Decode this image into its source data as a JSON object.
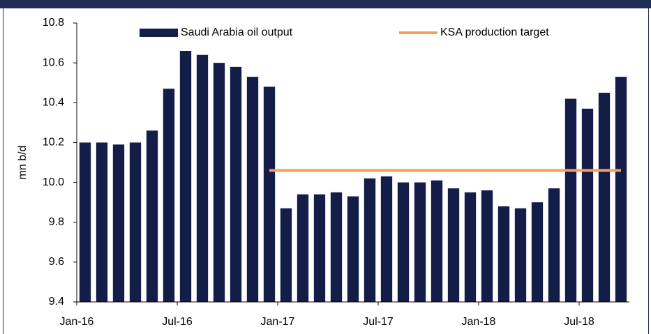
{
  "chart_data": {
    "type": "bar",
    "y_label": "mn b/d",
    "categories": [
      "Jan-16",
      null,
      null,
      null,
      null,
      null,
      "Jul-16",
      null,
      null,
      null,
      null,
      null,
      "Jan-17",
      null,
      null,
      null,
      null,
      null,
      "Jul-17",
      null,
      null,
      null,
      null,
      null,
      "Jan-18",
      null,
      null,
      null,
      null,
      null,
      "Jul-18",
      null,
      null
    ],
    "series": [
      {
        "name": "Saudi Arabia oil output",
        "type": "bar",
        "color": "#141c48",
        "values": [
          10.2,
          10.2,
          10.19,
          10.2,
          10.26,
          10.47,
          10.66,
          10.64,
          10.6,
          10.58,
          10.53,
          10.48,
          9.87,
          9.94,
          9.94,
          9.95,
          9.93,
          10.02,
          10.03,
          10.0,
          10.0,
          10.01,
          9.97,
          9.95,
          9.96,
          9.88,
          9.87,
          9.9,
          9.97,
          10.42,
          10.37,
          10.45,
          10.53
        ]
      },
      {
        "name": "KSA production target",
        "type": "line",
        "color": "#f5a05c",
        "values": [
          null,
          null,
          null,
          null,
          null,
          null,
          null,
          null,
          null,
          null,
          null,
          10.06,
          10.06,
          10.06,
          10.06,
          10.06,
          10.06,
          10.06,
          10.06,
          10.06,
          10.06,
          10.06,
          10.06,
          10.06,
          10.06,
          10.06,
          10.06,
          10.06,
          10.06,
          10.06,
          10.06,
          10.06,
          10.06
        ]
      }
    ],
    "ylim": [
      9.4,
      10.8
    ],
    "yticks": [
      9.4,
      9.6,
      9.8,
      {
        "value": 10,
        "label": "10.0"
      },
      10.2,
      10.4,
      10.6,
      10.8
    ],
    "grid": false,
    "legend": "top"
  }
}
